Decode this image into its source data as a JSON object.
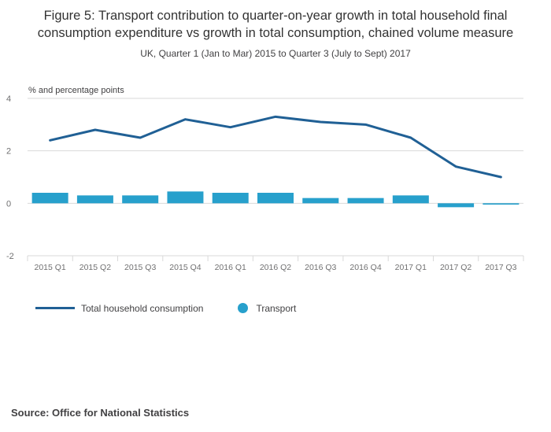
{
  "title": "Figure 5: Transport contribution to quarter-on-year growth in total household final consumption expenditure vs growth in total consumption, chained volume measure",
  "subtitle": "UK, Quarter 1 (Jan to Mar) 2015 to Quarter 3 (July to Sept) 2017",
  "axis_note": "% and percentage points",
  "source": "Source: Office for National Statistics",
  "colors": {
    "line": "#206095",
    "bar": "#27A0CC",
    "grid": "#d9d9d9",
    "tick_text": "#707071",
    "note_text": "#414042"
  },
  "chart_data": {
    "type": "bar+line",
    "title": "Figure 5: Transport contribution to quarter-on-year growth in total household final consumption expenditure vs growth in total consumption, chained volume measure",
    "subtitle": "UK, Quarter 1 (Jan to Mar) 2015 to Quarter 3 (July to Sept) 2017",
    "ylabel": "% and percentage points",
    "xlabel": "",
    "ylim": [
      -2,
      4
    ],
    "yticks": [
      4,
      2,
      0,
      -2
    ],
    "grid": true,
    "legend_position": "bottom",
    "categories": [
      "2015 Q1",
      "2015 Q2",
      "2015 Q3",
      "2015 Q4",
      "2016 Q1",
      "2016 Q2",
      "2016 Q3",
      "2016 Q4",
      "2017 Q1",
      "2017 Q2",
      "2017 Q3"
    ],
    "series": [
      {
        "name": "Total household consumption",
        "type": "line",
        "color": "#206095",
        "values": [
          2.4,
          2.8,
          2.5,
          3.2,
          2.9,
          3.3,
          3.1,
          3.0,
          2.5,
          1.4,
          1.0
        ]
      },
      {
        "name": "Transport",
        "type": "bar",
        "color": "#27A0CC",
        "values": [
          0.4,
          0.3,
          0.3,
          0.45,
          0.4,
          0.4,
          0.2,
          0.2,
          0.3,
          -0.15,
          -0.05
        ]
      }
    ]
  }
}
